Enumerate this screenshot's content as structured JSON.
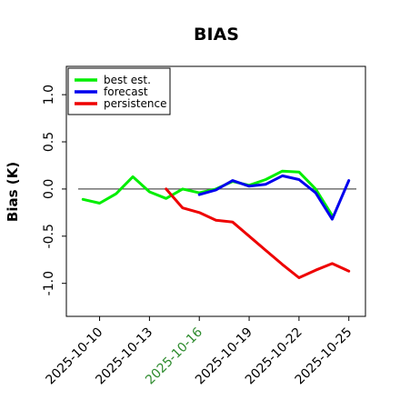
{
  "chart_data": {
    "type": "line",
    "title": "BIAS",
    "ylabel": "Bias (K)",
    "xlabel": "",
    "ylim": [
      -1.35,
      1.3
    ],
    "yticks": [
      -1.0,
      -0.5,
      0.0,
      0.5,
      1.0
    ],
    "ytick_labels": [
      "-1.0",
      "-0.5",
      "0.0",
      "0.5",
      "1.0"
    ],
    "xlim": [
      "2025-10-08",
      "2025-10-26"
    ],
    "xticks": [
      {
        "date": "2025-10-10",
        "label": "2025-10-10",
        "color": "#000000"
      },
      {
        "date": "2025-10-13",
        "label": "2025-10-13",
        "color": "#000000"
      },
      {
        "date": "2025-10-16",
        "label": "2025-10-16",
        "color": "#2e8b2e"
      },
      {
        "date": "2025-10-19",
        "label": "2025-10-19",
        "color": "#000000"
      },
      {
        "date": "2025-10-22",
        "label": "2025-10-22",
        "color": "#000000"
      },
      {
        "date": "2025-10-25",
        "label": "2025-10-25",
        "color": "#000000"
      }
    ],
    "reference_line": 0.0,
    "legend_position": "top-left",
    "series": [
      {
        "name": "best est.",
        "color": "#00ee00",
        "x": [
          "2025-10-09",
          "2025-10-10",
          "2025-10-11",
          "2025-10-12",
          "2025-10-13",
          "2025-10-14",
          "2025-10-15",
          "2025-10-16",
          "2025-10-17",
          "2025-10-18",
          "2025-10-19",
          "2025-10-20",
          "2025-10-21",
          "2025-10-22",
          "2025-10-23",
          "2025-10-24"
        ],
        "values": [
          -0.11,
          -0.15,
          -0.05,
          0.13,
          -0.03,
          -0.1,
          0.0,
          -0.04,
          0.0,
          0.08,
          0.04,
          0.1,
          0.19,
          0.18,
          0.0,
          -0.28
        ]
      },
      {
        "name": "forecast",
        "color": "#0000ee",
        "x": [
          "2025-10-16",
          "2025-10-17",
          "2025-10-18",
          "2025-10-19",
          "2025-10-20",
          "2025-10-21",
          "2025-10-22",
          "2025-10-23",
          "2025-10-24",
          "2025-10-25"
        ],
        "values": [
          -0.06,
          -0.01,
          0.09,
          0.03,
          0.05,
          0.14,
          0.1,
          -0.04,
          -0.32,
          0.09
        ]
      },
      {
        "name": "persistence",
        "color": "#ee0000",
        "x": [
          "2025-10-14",
          "2025-10-15",
          "2025-10-16",
          "2025-10-17",
          "2025-10-18",
          "2025-10-19",
          "2025-10-20",
          "2025-10-21",
          "2025-10-22",
          "2025-10-23",
          "2025-10-24",
          "2025-10-25"
        ],
        "values": [
          0.0,
          -0.2,
          -0.25,
          -0.33,
          -0.35,
          -0.5,
          -0.65,
          -0.8,
          -0.94,
          -0.86,
          -0.79,
          -0.87
        ]
      }
    ]
  }
}
